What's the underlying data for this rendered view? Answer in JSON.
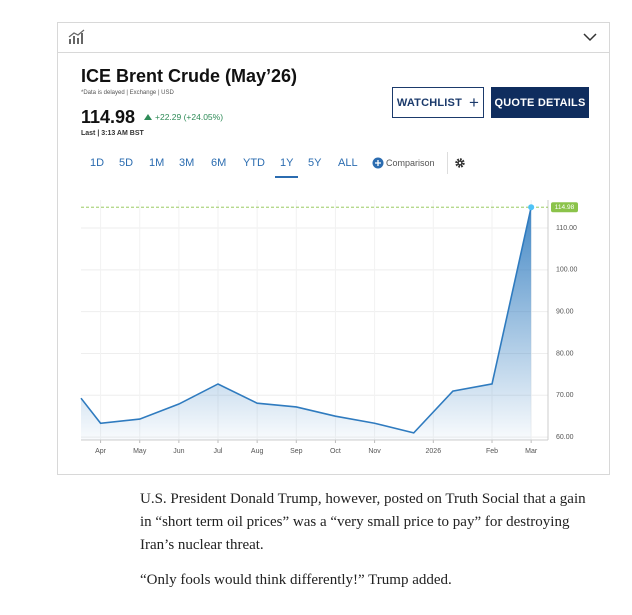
{
  "quote": {
    "title": "ICE Brent Crude (May’26)",
    "note": "*Data is delayed | Exchange | USD",
    "price": "114.98",
    "change": "+22.29 (+24.05%)",
    "last": "Last | 3:13 AM BST"
  },
  "buttons": [
    "WATCHLIST",
    "QUOTE DETAILS"
  ],
  "ranges": [
    "1D",
    "5D",
    "1M",
    "3M",
    "6M",
    "YTD",
    "1Y",
    "5Y",
    "ALL"
  ],
  "selected_range": "1Y",
  "comparison": "Comparison",
  "chart_data": {
    "type": "line",
    "x": [
      -0.5,
      0,
      1,
      2,
      3,
      4,
      5,
      6,
      7,
      8,
      9,
      10,
      11
    ],
    "series": [
      {
        "color": "#2f7bbf",
        "values": [
          69.3,
          63.3,
          64.3,
          67.9,
          72.7,
          68.1,
          67.2,
          65.0,
          63.3,
          61.0,
          71.0,
          72.7,
          114.98
        ]
      }
    ],
    "xlim": [
      -0.5,
      11.43
    ],
    "xticks": [
      {
        "value": 0,
        "label": "Apr"
      },
      {
        "value": 1,
        "label": "May"
      },
      {
        "value": 2,
        "label": "Jun"
      },
      {
        "value": 3,
        "label": "Jul"
      },
      {
        "value": 4,
        "label": "Aug"
      },
      {
        "value": 5,
        "label": "Sep"
      },
      {
        "value": 6,
        "label": "Oct"
      },
      {
        "value": 7,
        "label": "Nov"
      },
      {
        "value": 8.5,
        "label": "2026"
      },
      {
        "value": 10,
        "label": "Feb"
      },
      {
        "value": 11,
        "label": "Mar"
      }
    ],
    "ylim": [
      59.3,
      116.7
    ],
    "yticks": [
      {
        "value": 60,
        "label": "60.00"
      },
      {
        "value": 70,
        "label": "70.00"
      },
      {
        "value": 80,
        "label": "80.00"
      },
      {
        "value": 90,
        "label": "90.00"
      },
      {
        "value": 100,
        "label": "100.00"
      },
      {
        "value": 110,
        "label": "110.00"
      }
    ],
    "grid": true
  },
  "article": [
    "U.S. President Donald Trump, however, posted on Truth Social that a gain in “short term oil prices” was a “very small price to pay” for destroying Iran’s nuclear threat.",
    "“Only fools would think differently!” Trump added."
  ]
}
